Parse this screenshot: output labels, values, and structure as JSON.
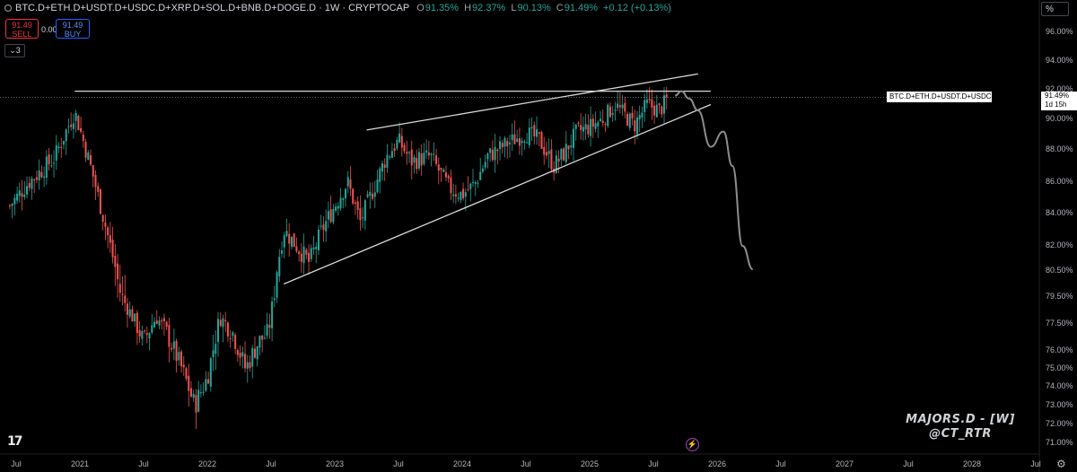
{
  "header": {
    "symbol": "BTC.D+ETH.D+USDT.D+USDC.D+XRP.D+SOL.D+BNB.D+DOGE.D · 1W · CRYPTOCAP",
    "o_label": "O",
    "o_value": "91.35%",
    "h_label": "H",
    "h_value": "92.37%",
    "l_label": "L",
    "l_value": "90.13%",
    "c_label": "C",
    "c_value": "91.49%",
    "change": "+0.12 (+0.13%)"
  },
  "trade": {
    "sell_price": "91.49",
    "sell_label": "SELL",
    "spread": "0.00",
    "buy_price": "91.49",
    "buy_label": "BUY"
  },
  "indicators_count": "3",
  "scale_mode": "%",
  "price_tag": {
    "symbol_text": "BTC.D+ETH.D+USDT.D+USDC.D+XRP.D+SOL.D...",
    "price": "91.49%",
    "countdown": "1d 15h"
  },
  "watermark": {
    "line1": "MAJORS.D - [W]",
    "line2": "@CT_RTR"
  },
  "colors": {
    "up": "#26a69a",
    "down": "#ef5350",
    "background": "#000000",
    "drawings": "#d8d8d8",
    "projection": "#8c8c8c"
  },
  "icons": {
    "logo": "tradingview-logo-icon",
    "bolt": "lightning-icon",
    "settings": "gear-icon"
  },
  "chart_data": {
    "type": "candlestick",
    "interval": "1W",
    "y_unit": "%",
    "y_ticks": [
      "96.00%",
      "94.00%",
      "92.00%",
      "90.00%",
      "88.00%",
      "86.00%",
      "84.00%",
      "82.00%",
      "80.50%",
      "79.50%",
      "77.50%",
      "76.00%",
      "75.00%",
      "74.00%",
      "73.00%",
      "72.00%",
      "71.00%"
    ],
    "x_ticks": [
      "Jul",
      "2021",
      "Jul",
      "2022",
      "Jul",
      "2023",
      "Jul",
      "2024",
      "Jul",
      "2025",
      "Jul",
      "2026",
      "Jul",
      "2027",
      "Jul",
      "2028",
      "Jul"
    ],
    "last_price": "91.49%",
    "price_path": [
      [
        2020.45,
        84.5
      ],
      [
        2020.6,
        86.0
      ],
      [
        2020.8,
        87.5
      ],
      [
        2020.96,
        90.5
      ],
      [
        2021.1,
        86.5
      ],
      [
        2021.3,
        80.0
      ],
      [
        2021.5,
        76.5
      ],
      [
        2021.6,
        78.0
      ],
      [
        2021.68,
        77.0
      ],
      [
        2021.8,
        75.0
      ],
      [
        2021.9,
        73.0
      ],
      [
        2022.0,
        74.5
      ],
      [
        2022.1,
        78.0
      ],
      [
        2022.2,
        77.0
      ],
      [
        2022.3,
        75.0
      ],
      [
        2022.4,
        76.5
      ],
      [
        2022.48,
        77.0
      ],
      [
        2022.52,
        79.5
      ],
      [
        2022.6,
        83.0
      ],
      [
        2022.7,
        82.0
      ],
      [
        2022.8,
        81.0
      ],
      [
        2022.9,
        83.0
      ],
      [
        2023.0,
        84.5
      ],
      [
        2023.1,
        86.0
      ],
      [
        2023.2,
        83.5
      ],
      [
        2023.3,
        85.5
      ],
      [
        2023.4,
        87.5
      ],
      [
        2023.5,
        88.6
      ],
      [
        2023.6,
        87.3
      ],
      [
        2023.75,
        87.6
      ],
      [
        2023.9,
        85.6
      ],
      [
        2024.0,
        85.2
      ],
      [
        2024.1,
        85.9
      ],
      [
        2024.2,
        87.6
      ],
      [
        2024.35,
        88.4
      ],
      [
        2024.5,
        89.1
      ],
      [
        2024.6,
        88.7
      ],
      [
        2024.72,
        87.0
      ],
      [
        2024.8,
        87.8
      ],
      [
        2024.9,
        89.2
      ],
      [
        2025.0,
        89.5
      ],
      [
        2025.1,
        90.0
      ],
      [
        2025.2,
        91.0
      ],
      [
        2025.35,
        89.6
      ],
      [
        2025.45,
        91.0
      ],
      [
        2025.55,
        90.6
      ],
      [
        2025.62,
        91.49
      ]
    ],
    "drawings": [
      {
        "type": "horizontal",
        "y": 91.9
      },
      {
        "type": "trendline",
        "points": [
          [
            2023.25,
            89.3
          ],
          [
            2025.85,
            93.1
          ]
        ]
      },
      {
        "type": "trendline",
        "points": [
          [
            2022.6,
            80.0
          ],
          [
            2025.95,
            91.0
          ]
        ]
      }
    ],
    "projection": [
      [
        2025.67,
        91.6
      ],
      [
        2025.72,
        91.9
      ],
      [
        2025.78,
        91.4
      ],
      [
        2025.85,
        90.6
      ],
      [
        2025.95,
        88.2
      ],
      [
        2026.05,
        89.2
      ],
      [
        2026.12,
        87.0
      ],
      [
        2026.2,
        82.0
      ],
      [
        2026.28,
        80.6
      ]
    ]
  }
}
